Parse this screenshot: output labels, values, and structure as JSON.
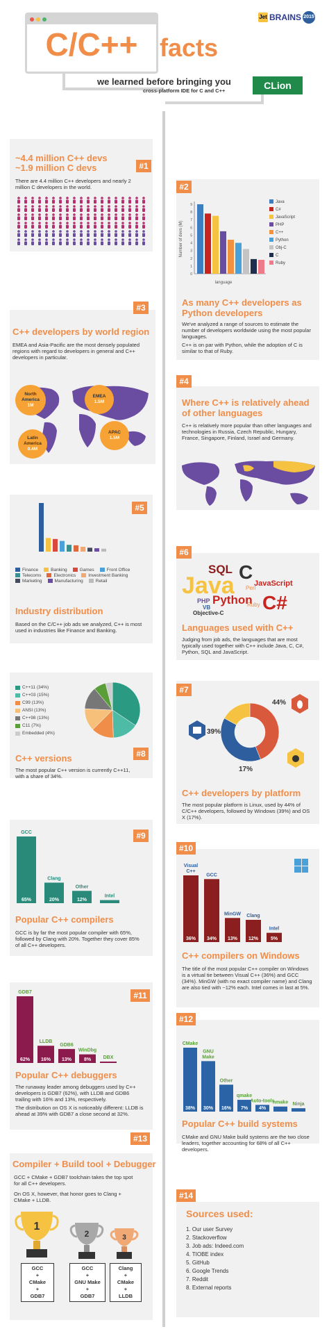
{
  "header": {
    "brand": "BRAINS",
    "brand_prefix": "Jet",
    "year": "2015",
    "title_main": "C/C++",
    "title_suffix": "facts",
    "subtitle": "we learned before bringing you",
    "subtitle2": "cross-platform IDE for C and C++",
    "clion": "CLion"
  },
  "s1": {
    "badge": "#1",
    "title1": "~4.4 million C++ devs",
    "title2": "~1.9 million C devs",
    "text": "There are 4.4 million C++ developers and nearly 2 million C developers in the world."
  },
  "s2": {
    "badge": "#2",
    "title": "As many C++ developers as Python developers",
    "text1": "We've analyzed a range of sources to estimate the number of developers worldwide using the most popular languages.",
    "text2": "C++ is on par with Python, while the adoption of C is similar to that of Ruby.",
    "ylabel": "Number of devs (M)",
    "xlabel": "language"
  },
  "s3": {
    "badge": "#3",
    "title": "C++ developers by world region",
    "text": "EMEA and Asia-Pacific are the most densely populated regions with regard to developers in general and C++ developers in particular.",
    "regions": [
      {
        "name": "North America",
        "value": "1M"
      },
      {
        "name": "EMEA",
        "value": "1.5M"
      },
      {
        "name": "Latin America",
        "value": "0.4M"
      },
      {
        "name": "APAC",
        "value": "1.5M"
      }
    ]
  },
  "s4": {
    "badge": "#4",
    "title": "Where C++ is relatively ahead of other languages",
    "text": "C++ is relatively more popular than other languages and technologies in Russia, Czech Republic, Hungary, France, Singapore, Finland, Israel and Germany."
  },
  "s5": {
    "badge": "#5",
    "title": "Industry distribution",
    "text": "Based on the C/C++ job ads we analyzed, C++ is most used in industries like Finance and Banking."
  },
  "s6": {
    "badge": "#6",
    "title": "Languages used with C++",
    "text": "Judging from job ads, the languages that are most typically used together with C++ include Java, C, C#, Python, SQL and JavaScript.",
    "cloud": [
      "SQL",
      "C",
      "Java",
      "JavaScript",
      "Perl",
      "PHP",
      "Python",
      "VB",
      "Ruby",
      "C#",
      "Objective-C"
    ]
  },
  "s7": {
    "badge": "#7",
    "title": "C++ versions",
    "text": "The most popular C++ version is currently C++11, with a share of 34%."
  },
  "s8": {
    "badge": "#8",
    "title": "C++ developers by platform",
    "text": "The most popular platform is Linux, used by 44% of C/C++ developers, followed by Windows (39%) and OS X (17%).",
    "labels": [
      "44%",
      "39%",
      "17%"
    ]
  },
  "s9": {
    "badge": "#9",
    "title": "Popular C++ compilers",
    "text": "GCC is by far the most popular compiler with 65%, followed by Clang with 20%. Together they cover 85% of all C++ developers."
  },
  "s10": {
    "badge": "#10",
    "title": "C++ compilers on Windows",
    "text": "The title of the most popular C++ compiler on Windows is a virtual tie between Visual C++ (36%) and GCC (34%). MinGW (with no exact compiler name) and Clang are also tied with ~12% each. Intel comes in last at 5%."
  },
  "s11": {
    "badge": "#11",
    "title": "Popular C++ debuggers",
    "text1": "The runaway leader among debuggers used by C++ developers is GDB7 (62%), with LLDB and GDB6 trailing with 16% and 13%, respectively.",
    "text2": "The distribution on OS X is noticeably different: LLDB is ahead at 39% with GDB7 a close second at 32%."
  },
  "s12": {
    "badge": "#12",
    "title": "Popular C++ build systems",
    "text": "CMake and GNU Make build systems are the two close leaders, together accounting for 68% of all C++ developers."
  },
  "s13": {
    "badge": "#13",
    "title": "Compiler + Build tool + Debugger",
    "text1": "GCC + CMake + GDB7 toolchain takes the top spot for all C++ developers.",
    "text2": "On OS X, however, that honor goes to Clang + CMake + LLDB.",
    "podium": [
      {
        "l1": "GCC",
        "l2": "+",
        "l3": "CMake",
        "l4": "+",
        "l5": "GDB7",
        "num": "1"
      },
      {
        "l1": "GCC",
        "l2": "+",
        "l3": "GNU Make",
        "l4": "+",
        "l5": "GDB7",
        "num": "2"
      },
      {
        "l1": "Clang",
        "l2": "+",
        "l3": "CMake",
        "l4": "+",
        "l5": "LLDB",
        "num": "3"
      }
    ]
  },
  "s14": {
    "badge": "#14",
    "title": "Sources used:",
    "items": [
      "1. Our user Survey",
      "2. Stackoverflow",
      "3. Job ads: Indeed.com",
      "4. TIOBE index",
      "5. GitHub",
      "6. Google Trends",
      "7. Reddit",
      "8. External reports"
    ]
  },
  "chart_data": [
    {
      "type": "bar",
      "id": "languages",
      "xlabel": "language",
      "ylabel": "Number of devs (M)",
      "ylim": [
        0,
        9
      ],
      "legend": "right",
      "categories": [
        "Java",
        "C#",
        "JavaScript",
        "PHP",
        "C++",
        "Python",
        "Obj-C",
        "C",
        "Ruby"
      ],
      "values": [
        9,
        7.8,
        7.5,
        5.5,
        4.4,
        4.0,
        3.2,
        1.9,
        1.8
      ],
      "colors": [
        "#3d7ec1",
        "#c8241f",
        "#f5c242",
        "#6a4ca0",
        "#f2913e",
        "#4aa0d8",
        "#c4c4c4",
        "#1f2d50",
        "#ef7a89"
      ]
    },
    {
      "type": "bar",
      "id": "industry",
      "legend": "bottom",
      "categories": [
        "Finance",
        "Banking",
        "Games",
        "Front Office",
        "Telecoms",
        "Electronics",
        "Investment Banking",
        "Marketing",
        "Manufacturing",
        "Retail"
      ],
      "values": [
        100,
        28,
        26,
        22,
        14,
        13,
        10,
        8,
        7,
        6
      ],
      "colors": [
        "#2e5e9e",
        "#f5c242",
        "#d9473d",
        "#4aa0d8",
        "#3b8f90",
        "#e0683c",
        "#f0a874",
        "#444b5c",
        "#6a4ca0",
        "#bbbbbb"
      ]
    },
    {
      "type": "pie",
      "id": "versions",
      "categories": [
        "C++11 (34%)",
        "C++03 (15%)",
        "C99 (13%)",
        "ANSI (13%)",
        "C++98 (13%)",
        "C11 (7%)",
        "Embedded (4%)"
      ],
      "values": [
        34,
        15,
        13,
        13,
        13,
        7,
        4
      ],
      "colors": [
        "#2a9a82",
        "#4dbba6",
        "#f08d49",
        "#f6c07a",
        "#777777",
        "#5a9e3a",
        "#cccccc"
      ]
    },
    {
      "type": "pie",
      "id": "platform",
      "categories": [
        "Linux",
        "Windows",
        "OS X"
      ],
      "values": [
        44,
        39,
        17
      ],
      "colors": [
        "#d9593d",
        "#2e5e9e",
        "#f5c242"
      ]
    },
    {
      "type": "bar",
      "id": "compilers",
      "categories": [
        "GCC",
        "Clang",
        "Other",
        "Intel"
      ],
      "values": [
        65,
        20,
        12,
        3
      ],
      "color": "#2a8a7a"
    },
    {
      "type": "bar",
      "id": "windows",
      "categories": [
        "Visual C++",
        "GCC",
        "MinGW",
        "Clang",
        "Intel"
      ],
      "values": [
        36,
        34,
        13,
        12,
        5
      ],
      "color": "#8b1f1f"
    },
    {
      "type": "bar",
      "id": "debuggers",
      "categories": [
        "GDB7",
        "LLDB",
        "GDB6",
        "WinDbg",
        "DBX"
      ],
      "values": [
        62,
        16,
        13,
        8,
        1
      ],
      "color": "#8b1a4d"
    },
    {
      "type": "bar",
      "id": "build",
      "categories": [
        "CMake",
        "GNU Make",
        "Other",
        "qmake",
        "Auto-tools",
        "nmake",
        "Ninja"
      ],
      "values": [
        38,
        30,
        16,
        7,
        4,
        3,
        2
      ],
      "color": "#2a63a6"
    }
  ]
}
